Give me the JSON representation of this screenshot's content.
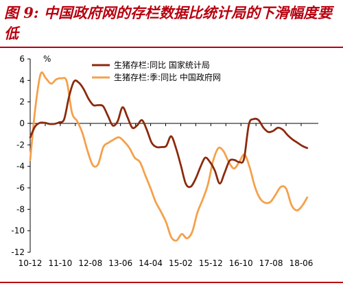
{
  "header": {
    "title": "图 9:  中国政府网的存栏数据比统计局的下滑幅度要低"
  },
  "chart_data": {
    "type": "line",
    "ylabel": "%",
    "ylim": [
      -12,
      6
    ],
    "yticks": [
      6,
      4,
      2,
      0,
      -2,
      -4,
      -6,
      -8,
      -10,
      -12
    ],
    "xticks": [
      "10-12",
      "11-10",
      "12-08",
      "13-06",
      "14-04",
      "15-02",
      "15-12",
      "16-10",
      "17-08",
      "18-06"
    ],
    "x_start": "2010-12",
    "grid": false,
    "legend_position": "top-right",
    "series": [
      {
        "name": "生猪存栏:同比  国家统计局",
        "color": "#8b2a0c",
        "values": [
          -1.3,
          -0.3,
          0.05,
          0.05,
          -0.05,
          -0.05,
          0.1,
          0.4,
          2.5,
          3.9,
          3.8,
          3.2,
          2.3,
          1.7,
          1.7,
          1.6,
          0.7,
          -0.2,
          0.2,
          1.5,
          0.6,
          -0.4,
          -0.2,
          0.3,
          -0.6,
          -1.8,
          -2.2,
          -2.2,
          -2.1,
          -1.2,
          -2.3,
          -3.9,
          -5.6,
          -5.9,
          -5.2,
          -4.1,
          -3.2,
          -3.6,
          -4.4,
          -5.6,
          -4.6,
          -3.5,
          -3.4,
          -3.6,
          -3.3,
          -0.1,
          0.4,
          0.3,
          -0.4,
          -0.8,
          -0.7,
          -0.4,
          -0.6,
          -1.1,
          -1.5,
          -1.8,
          -2.1,
          -2.3
        ]
      },
      {
        "name": "生猪存栏:季:同比  中国政府网",
        "color": "#f5a04a",
        "values": [
          -3.4,
          1.5,
          4.6,
          4.2,
          3.7,
          4.1,
          4.2,
          3.9,
          1.0,
          0.2,
          -0.9,
          -2.6,
          -3.9,
          -3.8,
          -2.2,
          -1.8,
          -1.5,
          -1.3,
          -1.7,
          -2.3,
          -3.2,
          -3.6,
          -4.8,
          -6.0,
          -7.3,
          -8.2,
          -9.2,
          -10.6,
          -10.9,
          -10.3,
          -10.7,
          -10.1,
          -8.3,
          -7.1,
          -5.7,
          -3.5,
          -2.3,
          -2.6,
          -3.6,
          -4.2,
          -3.6,
          -2.9,
          -4.1,
          -5.9,
          -7.0,
          -7.4,
          -7.3,
          -6.6,
          -5.9,
          -6.1,
          -7.6,
          -8.1,
          -7.7,
          -6.9
        ]
      }
    ]
  }
}
